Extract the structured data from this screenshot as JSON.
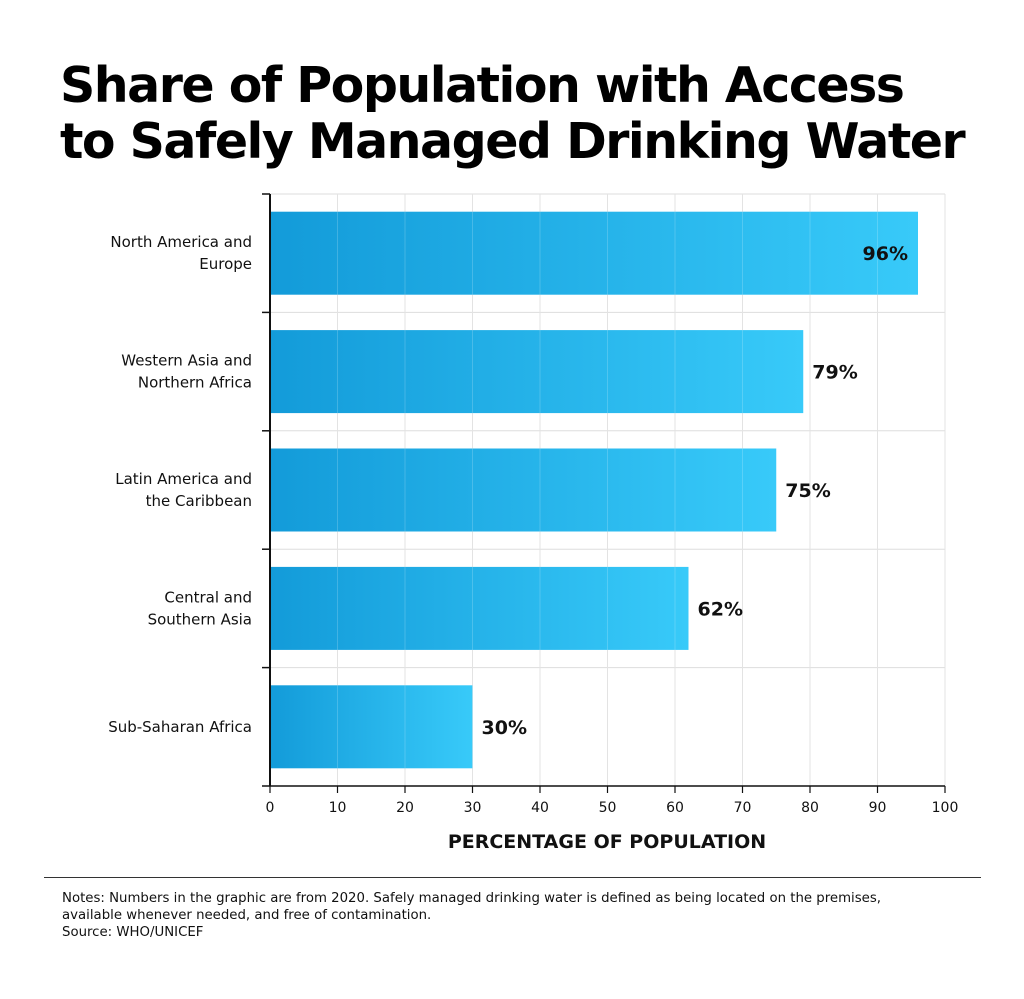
{
  "chart_data": {
    "type": "bar",
    "orientation": "horizontal",
    "title": "Share of Population with Access to Safely Managed Drinking Water",
    "title_lines": [
      "Share of Population with Access",
      "to Safely Managed Drinking Water"
    ],
    "categories": [
      [
        "North America and",
        "Europe"
      ],
      [
        "Western Asia and",
        "Northern Africa"
      ],
      [
        "Latin America and",
        "the Caribbean"
      ],
      [
        "Central and",
        "Southern Asia"
      ],
      [
        "Sub-Saharan Africa"
      ]
    ],
    "values": [
      96,
      79,
      75,
      62,
      30
    ],
    "data_labels": [
      "96%",
      "79%",
      "75%",
      "62%",
      "30%"
    ],
    "xlabel": "PERCENTAGE OF POPULATION",
    "ylabel": "",
    "xlim": [
      0,
      100
    ],
    "xticks": [
      "0",
      "10",
      "20",
      "30",
      "40",
      "50",
      "60",
      "70",
      "80",
      "90",
      "100"
    ],
    "grid": true,
    "colors": {
      "bar_start": "#139bd9",
      "bar_end": "#38caf9",
      "grid": "#dddddd",
      "axis": "#111111"
    }
  },
  "notes": {
    "line1": "Notes: Numbers in the graphic are from 2020. Safely managed drinking water is defined as being located on the premises,",
    "line2": "available whenever needed, and free of contamination.",
    "source": "Source: WHO/UNICEF"
  }
}
